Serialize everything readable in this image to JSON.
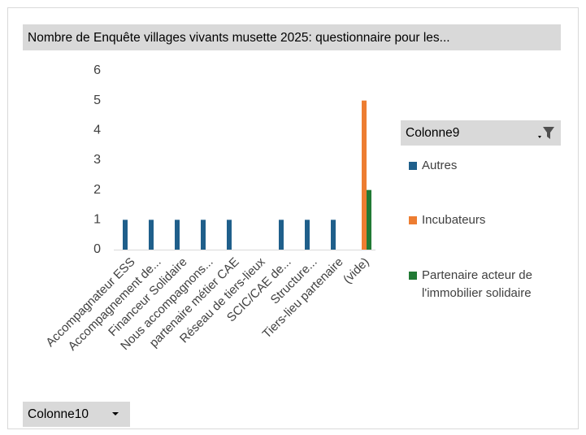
{
  "chart_data": {
    "type": "bar",
    "title": "Nombre de Enquête villages vivants musette 2025: questionnaire pour les...",
    "categories": [
      "Accompagnateur ESS",
      "Accompagnement de...",
      "Financeur Solidaire",
      "Nous accompagnons...",
      "partenaire métier CAE",
      "Réseau de tiers-lieux",
      "SCIC/CAE de...",
      "Structure...",
      "Tiers-lieu partenaire",
      "(vide)"
    ],
    "series": [
      {
        "name": "Autres",
        "color": "#1f5f8b",
        "values": [
          1,
          1,
          1,
          1,
          1,
          null,
          1,
          1,
          1,
          null
        ]
      },
      {
        "name": "Incubateurs",
        "color": "#ed7d31",
        "values": [
          null,
          null,
          null,
          null,
          null,
          null,
          null,
          null,
          null,
          5
        ]
      },
      {
        "name": "Partenaire acteur de l'immobilier solidaire",
        "color": "#217a35",
        "values": [
          null,
          null,
          null,
          null,
          null,
          null,
          null,
          null,
          null,
          2
        ]
      }
    ],
    "ylim": [
      0,
      6
    ],
    "yticks": [
      0,
      1,
      2,
      3,
      4,
      5,
      6
    ],
    "grid": false,
    "legend_title": "Colonne9",
    "axis_field": "Colonne10"
  }
}
